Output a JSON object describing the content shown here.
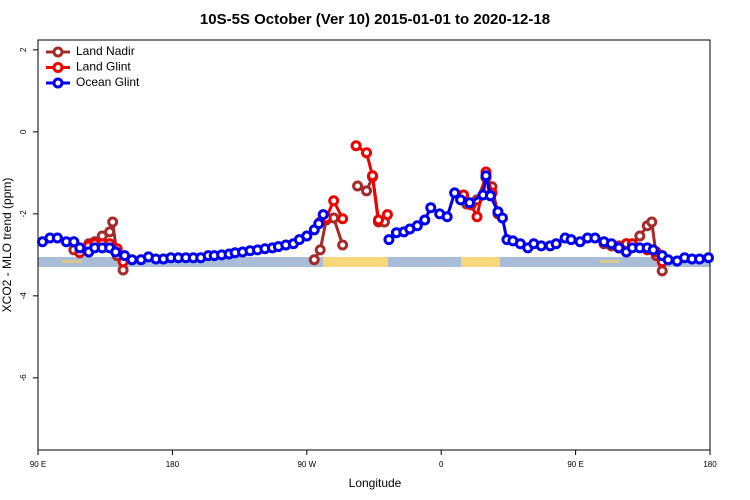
{
  "chart_data": {
    "type": "line",
    "title": "10S-5S October (Ver 10)   2015-01-01 to 2020-12-18",
    "xlabel": "Longitude",
    "ylabel": "XCO2 - MLO trend (ppm)",
    "xlim": [
      90,
      540
    ],
    "ylim": [
      -7.76,
      2.24
    ],
    "xticks": [
      {
        "value": 90,
        "label": "90 E"
      },
      180,
      {
        "value": 270,
        "label": "90 W"
      },
      {
        "value": 360,
        "label": "0"
      },
      {
        "value": 450,
        "label": "90 E"
      },
      {
        "value": 540,
        "label": "180"
      }
    ],
    "yticks": [
      2,
      0,
      -2,
      -4,
      -6
    ],
    "legend": "top-left",
    "series": [
      {
        "name": "Land Nadir",
        "color": "#a52a2a",
        "x": [
          114,
          118,
          124,
          128,
          133,
          138,
          140,
          143,
          147,
          200,
          275,
          279,
          283,
          288,
          294,
          299,
          304,
          310,
          314,
          318,
          322,
          340,
          373,
          377,
          384,
          390,
          394,
          398,
          430,
          469,
          474,
          479,
          484,
          488,
          493,
          498,
          501,
          504,
          508
        ],
        "values": [
          -2.88,
          -2.93,
          -2.73,
          -2.68,
          -2.54,
          -2.44,
          -2.2,
          -3.02,
          -3.37,
          null,
          -3.12,
          -2.88,
          -2.15,
          -2.1,
          -2.76,
          null,
          -1.32,
          -1.44,
          -1.1,
          -2.2,
          -2.2,
          null,
          -1.56,
          -1.76,
          -1.66,
          -1.12,
          -1.34,
          -2.0,
          null,
          -2.73,
          -2.78,
          -2.78,
          -2.73,
          -2.73,
          -2.54,
          -2.29,
          -2.2,
          -3.02,
          -3.39
        ]
      },
      {
        "name": "Land Glint",
        "color": "#ee0000",
        "x": [
          118,
          124,
          128,
          133,
          138,
          143,
          147,
          200,
          279,
          283,
          288,
          294,
          298,
          303,
          310,
          314,
          318,
          324,
          340,
          375,
          380,
          384,
          390,
          394,
          398,
          430,
          479,
          484,
          488,
          498,
          504,
          508
        ],
        "values": [
          -2.95,
          -2.78,
          -2.73,
          -2.73,
          -2.73,
          -2.85,
          -3.17,
          null,
          -2.2,
          -2.1,
          -1.68,
          -2.12,
          null,
          -0.34,
          -0.51,
          -1.07,
          -2.15,
          -2.02,
          null,
          -1.54,
          -1.78,
          -2.07,
          -0.98,
          -1.49,
          -1.95,
          null,
          -2.83,
          -2.73,
          -2.73,
          -2.88,
          -2.93,
          -3.17
        ]
      },
      {
        "name": "Ocean Glint",
        "color": "#0000ee",
        "x": [
          93,
          98,
          103,
          109,
          114,
          118,
          124,
          128,
          133,
          138,
          142,
          148,
          153,
          159,
          164,
          169,
          174,
          179,
          184,
          189,
          194,
          199,
          204,
          208,
          213,
          218,
          222,
          227,
          232,
          237,
          242,
          247,
          251,
          256,
          261,
          265,
          270,
          275,
          278,
          281,
          300,
          325,
          330,
          335,
          339,
          344,
          349,
          353,
          359,
          364,
          369,
          373,
          379,
          388,
          390,
          393,
          398,
          401,
          404,
          408,
          413,
          418,
          422,
          427,
          433,
          437,
          443,
          447,
          453,
          458,
          463,
          469,
          474,
          479,
          484,
          488,
          493,
          498,
          502,
          508,
          512,
          518,
          523,
          528,
          533,
          539
        ],
        "values": [
          -2.68,
          -2.59,
          -2.59,
          -2.68,
          -2.68,
          -2.83,
          -2.93,
          -2.83,
          -2.83,
          -2.83,
          -2.93,
          -3.02,
          -3.12,
          -3.12,
          -3.05,
          -3.1,
          -3.1,
          -3.07,
          -3.07,
          -3.07,
          -3.07,
          -3.07,
          -3.02,
          -3.02,
          -3.0,
          -2.98,
          -2.95,
          -2.93,
          -2.9,
          -2.88,
          -2.85,
          -2.83,
          -2.8,
          -2.76,
          -2.73,
          -2.63,
          -2.54,
          -2.39,
          -2.24,
          -2.02,
          null,
          -2.63,
          -2.46,
          -2.44,
          -2.37,
          -2.29,
          -2.15,
          -1.85,
          -2.0,
          -2.07,
          -1.49,
          -1.66,
          -1.73,
          -1.54,
          -1.07,
          -1.56,
          -1.95,
          -2.1,
          -2.63,
          -2.66,
          -2.73,
          -2.83,
          -2.73,
          -2.78,
          -2.78,
          -2.73,
          -2.59,
          -2.63,
          -2.68,
          -2.59,
          -2.59,
          -2.68,
          -2.73,
          -2.83,
          -2.93,
          -2.83,
          -2.83,
          -2.83,
          -2.88,
          -3.02,
          -3.12,
          -3.15,
          -3.07,
          -3.1,
          -3.1,
          -3.07
        ]
      }
    ]
  }
}
